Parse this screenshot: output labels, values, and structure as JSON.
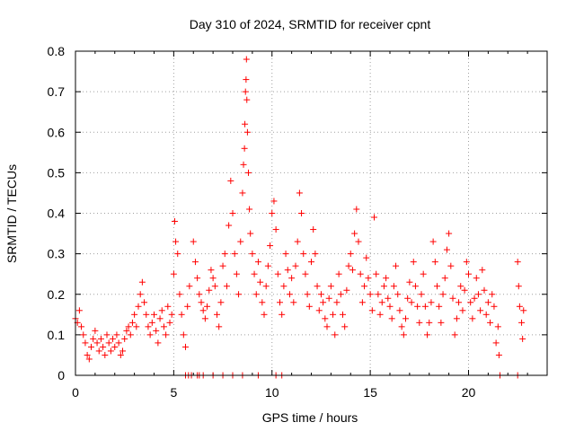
{
  "chart_data": {
    "type": "scatter",
    "title": "Day 310 of 2024, SRMTID for receiver cpnt",
    "xlabel": "GPS time / hours",
    "ylabel": "SRMTID / TECUs",
    "xlim": [
      0,
      24
    ],
    "ylim": [
      0,
      0.8
    ],
    "xticks": [
      0,
      5,
      10,
      15,
      20
    ],
    "xtick_labels": [
      "0",
      "5",
      "10",
      "15",
      "20"
    ],
    "yticks": [
      0,
      0.1,
      0.2,
      0.3,
      0.4,
      0.5,
      0.6,
      0.7,
      0.8
    ],
    "ytick_labels": [
      "0",
      "0.1",
      "0.2",
      "0.3",
      "0.4",
      "0.5",
      "0.6",
      "0.7",
      "0.8"
    ],
    "grid": true,
    "marker": "+",
    "color": "#ff0000",
    "series": [
      {
        "name": "SRMTID",
        "points": [
          [
            0.0,
            0.14
          ],
          [
            0.1,
            0.13
          ],
          [
            0.2,
            0.16
          ],
          [
            0.3,
            0.12
          ],
          [
            0.4,
            0.1
          ],
          [
            0.5,
            0.08
          ],
          [
            0.6,
            0.05
          ],
          [
            0.7,
            0.04
          ],
          [
            0.8,
            0.07
          ],
          [
            0.9,
            0.09
          ],
          [
            1.0,
            0.11
          ],
          [
            1.1,
            0.08
          ],
          [
            1.2,
            0.06
          ],
          [
            1.3,
            0.09
          ],
          [
            1.4,
            0.07
          ],
          [
            1.5,
            0.05
          ],
          [
            1.6,
            0.1
          ],
          [
            1.7,
            0.08
          ],
          [
            1.8,
            0.06
          ],
          [
            1.9,
            0.09
          ],
          [
            2.0,
            0.07
          ],
          [
            2.1,
            0.1
          ],
          [
            2.2,
            0.08
          ],
          [
            2.3,
            0.05
          ],
          [
            2.4,
            0.06
          ],
          [
            2.5,
            0.09
          ],
          [
            2.6,
            0.11
          ],
          [
            2.7,
            0.12
          ],
          [
            2.8,
            0.1
          ],
          [
            2.9,
            0.13
          ],
          [
            3.0,
            0.15
          ],
          [
            3.1,
            0.12
          ],
          [
            3.2,
            0.17
          ],
          [
            3.3,
            0.2
          ],
          [
            3.4,
            0.23
          ],
          [
            3.5,
            0.18
          ],
          [
            3.6,
            0.15
          ],
          [
            3.7,
            0.12
          ],
          [
            3.8,
            0.1
          ],
          [
            3.9,
            0.13
          ],
          [
            4.0,
            0.15
          ],
          [
            4.1,
            0.11
          ],
          [
            4.2,
            0.08
          ],
          [
            4.3,
            0.14
          ],
          [
            4.4,
            0.16
          ],
          [
            4.5,
            0.12
          ],
          [
            4.6,
            0.1
          ],
          [
            4.7,
            0.17
          ],
          [
            4.8,
            0.13
          ],
          [
            4.9,
            0.15
          ],
          [
            5.0,
            0.25
          ],
          [
            5.05,
            0.38
          ],
          [
            5.1,
            0.33
          ],
          [
            5.2,
            0.3
          ],
          [
            5.3,
            0.2
          ],
          [
            5.4,
            0.15
          ],
          [
            5.5,
            0.1
          ],
          [
            5.6,
            0.07
          ],
          [
            5.7,
            0.17
          ],
          [
            5.8,
            0.22
          ],
          [
            6.0,
            0.33
          ],
          [
            6.1,
            0.28
          ],
          [
            6.2,
            0.24
          ],
          [
            6.3,
            0.2
          ],
          [
            6.4,
            0.18
          ],
          [
            6.5,
            0.16
          ],
          [
            6.6,
            0.14
          ],
          [
            6.7,
            0.17
          ],
          [
            6.8,
            0.21
          ],
          [
            6.9,
            0.26
          ],
          [
            7.0,
            0.24
          ],
          [
            7.1,
            0.22
          ],
          [
            7.2,
            0.15
          ],
          [
            7.3,
            0.12
          ],
          [
            7.4,
            0.18
          ],
          [
            7.5,
            0.27
          ],
          [
            7.6,
            0.3
          ],
          [
            7.7,
            0.22
          ],
          [
            7.8,
            0.37
          ],
          [
            7.9,
            0.48
          ],
          [
            8.0,
            0.4
          ],
          [
            8.1,
            0.3
          ],
          [
            8.2,
            0.25
          ],
          [
            8.3,
            0.2
          ],
          [
            8.4,
            0.33
          ],
          [
            8.5,
            0.45
          ],
          [
            8.55,
            0.52
          ],
          [
            8.6,
            0.56
          ],
          [
            8.62,
            0.62
          ],
          [
            8.65,
            0.7
          ],
          [
            8.68,
            0.73
          ],
          [
            8.7,
            0.78
          ],
          [
            8.72,
            0.68
          ],
          [
            8.75,
            0.6
          ],
          [
            8.8,
            0.5
          ],
          [
            8.85,
            0.41
          ],
          [
            8.9,
            0.35
          ],
          [
            9.0,
            0.3
          ],
          [
            9.1,
            0.25
          ],
          [
            9.2,
            0.2
          ],
          [
            9.3,
            0.28
          ],
          [
            9.4,
            0.23
          ],
          [
            9.5,
            0.18
          ],
          [
            9.6,
            0.15
          ],
          [
            9.7,
            0.22
          ],
          [
            9.8,
            0.27
          ],
          [
            9.9,
            0.32
          ],
          [
            10.0,
            0.4
          ],
          [
            10.1,
            0.43
          ],
          [
            10.2,
            0.36
          ],
          [
            10.3,
            0.25
          ],
          [
            10.4,
            0.18
          ],
          [
            10.5,
            0.15
          ],
          [
            10.6,
            0.22
          ],
          [
            10.7,
            0.3
          ],
          [
            10.8,
            0.26
          ],
          [
            10.9,
            0.2
          ],
          [
            11.0,
            0.24
          ],
          [
            11.1,
            0.18
          ],
          [
            11.2,
            0.27
          ],
          [
            11.3,
            0.33
          ],
          [
            11.4,
            0.45
          ],
          [
            11.5,
            0.4
          ],
          [
            11.6,
            0.3
          ],
          [
            11.7,
            0.25
          ],
          [
            11.8,
            0.2
          ],
          [
            11.9,
            0.17
          ],
          [
            12.0,
            0.28
          ],
          [
            12.1,
            0.36
          ],
          [
            12.2,
            0.3
          ],
          [
            12.3,
            0.22
          ],
          [
            12.4,
            0.16
          ],
          [
            12.5,
            0.2
          ],
          [
            12.6,
            0.18
          ],
          [
            12.7,
            0.14
          ],
          [
            12.8,
            0.12
          ],
          [
            12.9,
            0.19
          ],
          [
            13.0,
            0.22
          ],
          [
            13.1,
            0.15
          ],
          [
            13.2,
            0.1
          ],
          [
            13.3,
            0.18
          ],
          [
            13.4,
            0.25
          ],
          [
            13.5,
            0.2
          ],
          [
            13.6,
            0.15
          ],
          [
            13.7,
            0.12
          ],
          [
            13.8,
            0.21
          ],
          [
            13.9,
            0.27
          ],
          [
            14.0,
            0.3
          ],
          [
            14.1,
            0.26
          ],
          [
            14.2,
            0.35
          ],
          [
            14.3,
            0.41
          ],
          [
            14.4,
            0.33
          ],
          [
            14.5,
            0.25
          ],
          [
            14.6,
            0.18
          ],
          [
            14.7,
            0.22
          ],
          [
            14.8,
            0.29
          ],
          [
            14.9,
            0.24
          ],
          [
            15.0,
            0.2
          ],
          [
            15.1,
            0.16
          ],
          [
            15.2,
            0.39
          ],
          [
            15.3,
            0.25
          ],
          [
            15.4,
            0.2
          ],
          [
            15.5,
            0.15
          ],
          [
            15.6,
            0.18
          ],
          [
            15.7,
            0.22
          ],
          [
            15.8,
            0.24
          ],
          [
            15.9,
            0.19
          ],
          [
            16.0,
            0.17
          ],
          [
            16.1,
            0.14
          ],
          [
            16.2,
            0.22
          ],
          [
            16.3,
            0.27
          ],
          [
            16.4,
            0.2
          ],
          [
            16.5,
            0.16
          ],
          [
            16.6,
            0.12
          ],
          [
            16.7,
            0.1
          ],
          [
            16.8,
            0.14
          ],
          [
            16.9,
            0.19
          ],
          [
            17.0,
            0.23
          ],
          [
            17.1,
            0.18
          ],
          [
            17.2,
            0.28
          ],
          [
            17.3,
            0.22
          ],
          [
            17.4,
            0.17
          ],
          [
            17.5,
            0.13
          ],
          [
            17.6,
            0.2
          ],
          [
            17.7,
            0.25
          ],
          [
            17.8,
            0.17
          ],
          [
            17.9,
            0.1
          ],
          [
            18.0,
            0.13
          ],
          [
            18.1,
            0.18
          ],
          [
            18.2,
            0.33
          ],
          [
            18.3,
            0.28
          ],
          [
            18.4,
            0.22
          ],
          [
            18.5,
            0.17
          ],
          [
            18.6,
            0.13
          ],
          [
            18.7,
            0.2
          ],
          [
            18.8,
            0.24
          ],
          [
            18.9,
            0.31
          ],
          [
            19.0,
            0.35
          ],
          [
            19.1,
            0.27
          ],
          [
            19.2,
            0.19
          ],
          [
            19.3,
            0.1
          ],
          [
            19.4,
            0.14
          ],
          [
            19.5,
            0.18
          ],
          [
            19.6,
            0.22
          ],
          [
            19.7,
            0.16
          ],
          [
            19.8,
            0.21
          ],
          [
            19.9,
            0.28
          ],
          [
            20.0,
            0.25
          ],
          [
            20.1,
            0.18
          ],
          [
            20.2,
            0.14
          ],
          [
            20.3,
            0.19
          ],
          [
            20.4,
            0.24
          ],
          [
            20.5,
            0.2
          ],
          [
            20.6,
            0.16
          ],
          [
            20.7,
            0.26
          ],
          [
            20.8,
            0.21
          ],
          [
            20.9,
            0.15
          ],
          [
            21.0,
            0.18
          ],
          [
            21.1,
            0.13
          ],
          [
            21.2,
            0.2
          ],
          [
            21.3,
            0.17
          ],
          [
            21.4,
            0.08
          ],
          [
            21.5,
            0.12
          ],
          [
            21.55,
            0.05
          ],
          [
            22.5,
            0.28
          ],
          [
            22.55,
            0.22
          ],
          [
            22.6,
            0.17
          ],
          [
            22.7,
            0.13
          ],
          [
            22.75,
            0.09
          ],
          [
            22.8,
            0.16
          ],
          [
            5.6,
            0.0
          ],
          [
            5.75,
            0.0
          ],
          [
            5.9,
            0.0
          ],
          [
            6.2,
            0.0
          ],
          [
            6.3,
            0.0
          ],
          [
            6.5,
            0.0
          ],
          [
            7.0,
            0.0
          ],
          [
            7.5,
            0.0
          ],
          [
            8.0,
            0.0
          ],
          [
            8.5,
            0.0
          ],
          [
            9.3,
            0.0
          ],
          [
            10.2,
            0.0
          ],
          [
            10.5,
            0.0
          ],
          [
            21.6,
            0.0
          ],
          [
            22.5,
            0.0
          ]
        ]
      }
    ]
  }
}
